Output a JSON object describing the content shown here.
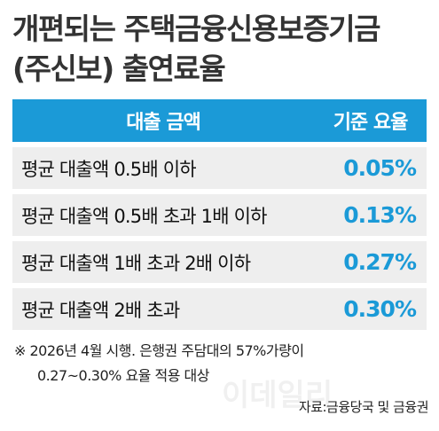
{
  "header": {
    "title": [
      "개편되는 주택금융신용보증기금",
      "(주신보) 출연료율"
    ]
  },
  "table": {
    "columns": [
      "대출 금액",
      "기준 요율"
    ],
    "rows": [
      [
        "평균 대출액 0.5배 이하",
        "0.05%"
      ],
      [
        "평균 대출액 0.5배 초과 1배 이하",
        "0.13%"
      ],
      [
        "평균 대출액 1배 초과 2배 이하",
        "0.27%"
      ],
      [
        "평균 대출액 2배 초과",
        "0.30%"
      ]
    ]
  },
  "footnote": [
    "※ 2026년 4월 시행. 은행권 주담대의 57%가량이",
    "0.27~0.30% 요율 적용 대상"
  ],
  "source": "자료:금융당국 및 금융권",
  "watermark": "이데일리"
}
